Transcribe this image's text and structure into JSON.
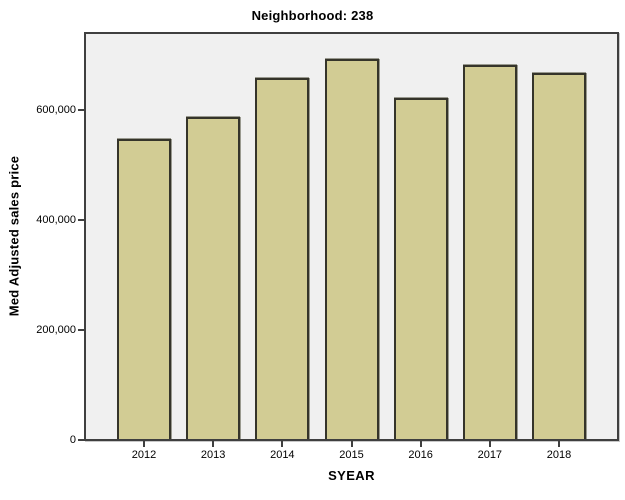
{
  "chart_data": {
    "type": "bar",
    "title": "Neighborhood: 238",
    "xlabel": "SYEAR",
    "ylabel": "Med Adjusted sales price",
    "categories": [
      "2012",
      "2013",
      "2014",
      "2015",
      "2016",
      "2017",
      "2018"
    ],
    "values": [
      546000,
      586000,
      656000,
      690000,
      620000,
      679000,
      665000
    ],
    "ylim": [
      0,
      736000
    ],
    "yticks": [
      0,
      200000,
      400000,
      600000
    ],
    "ytick_labels": [
      "0",
      "200,000",
      "400,000",
      "600,000"
    ],
    "grid": false,
    "legend": "none",
    "colors": {
      "bar_fill": "#d2cc94",
      "bar_border": "#35342a",
      "plot_background": "#f0f0f0",
      "frame": "#3f3f3f",
      "canvas_background": "#ffffff",
      "text": "#000000"
    }
  }
}
